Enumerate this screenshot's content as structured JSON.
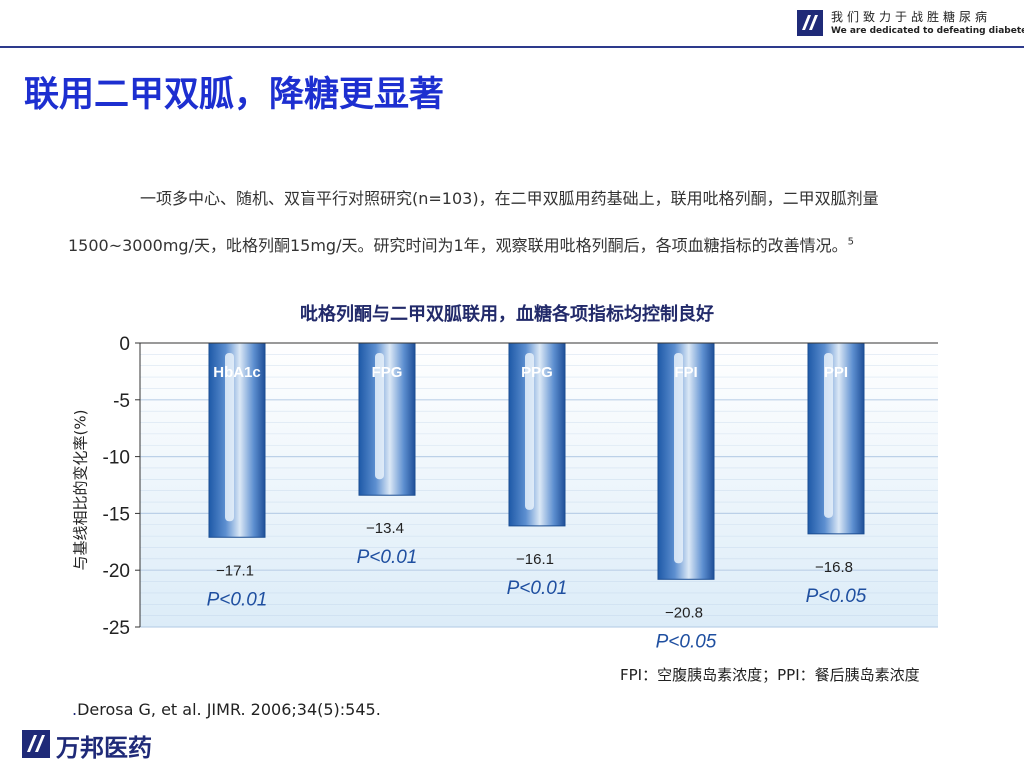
{
  "header": {
    "brand_slogan_cn": "我们致力于战胜糖尿病",
    "brand_slogan_en": "We are dedicated to defeating diabetes",
    "title": "联用二甲双胍，降糖更显著"
  },
  "description": {
    "line1": "一项多中心、随机、双盲平行对照研究(n=103)，在二甲双胍用药基础上，联用吡格列酮，二甲双胍剂量",
    "line2": "1500~3000mg/天，吡格列酮15mg/天。研究时间为1年，观察联用吡格列酮后，各项血糖指标的改善情况。",
    "citation_mark": "5"
  },
  "chart_data": {
    "type": "bar",
    "title": "吡格列酮与二甲双胍联用，血糖各项指标均控制良好",
    "ylabel": "与基线相比的变化率(%)",
    "xlabel": "",
    "ylim": [
      -25,
      0
    ],
    "yticks": [
      0,
      -5,
      -10,
      -15,
      -20,
      -25
    ],
    "ytick_labels": [
      "0",
      "-5",
      "-10",
      "-15",
      "-20",
      "-25"
    ],
    "grid": true,
    "categories": [
      "HbA1c",
      "FPG",
      "PPG",
      "FPI",
      "PPI"
    ],
    "values": [
      -17.1,
      -13.4,
      -16.1,
      -20.8,
      -16.8
    ],
    "value_labels": [
      "−17.1",
      "−13.4",
      "−16.1",
      "−20.8",
      "−16.8"
    ],
    "p_values": [
      "P<0.01",
      "P<0.01",
      "P<0.01",
      "P<0.05",
      "P<0.05"
    ],
    "colors": {
      "bar_dark": "#1f5aa8",
      "bar_light": "#cfe0f3",
      "bar_highlight": "#e8f1fa",
      "grid": "#b7cde6",
      "p_text": "#1f4fa0"
    }
  },
  "footnote": "FPI：空腹胰岛素浓度；PPI：餐后胰岛素浓度",
  "reference": "Derosa G, et al. JIMR. 2006;34(5):545.",
  "footer": {
    "company": "万邦医药"
  }
}
